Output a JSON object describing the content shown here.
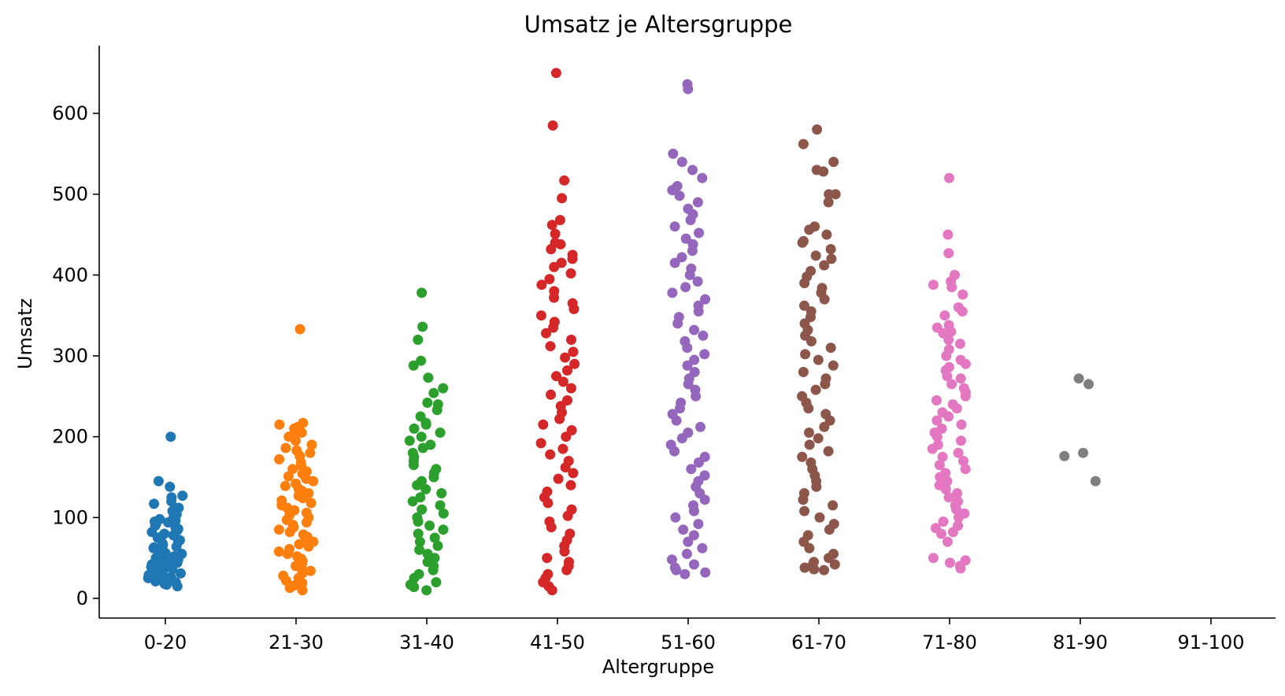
{
  "chart_data": {
    "type": "scatter",
    "subtype": "strip",
    "title": "Umsatz je Altersgruppe",
    "xlabel": "Altergruppe",
    "ylabel": "Umsatz",
    "ylim": [
      -25,
      680
    ],
    "yticks": [
      0,
      100,
      200,
      300,
      400,
      500,
      600
    ],
    "grid": false,
    "legend": "none",
    "categories": [
      "0-20",
      "21-30",
      "31-40",
      "41-50",
      "51-60",
      "61-70",
      "71-80",
      "81-90",
      "91-100"
    ],
    "series": [
      {
        "category": "0-20",
        "color": "#1f77b4",
        "values": [
          200,
          145,
          138,
          127,
          125,
          120,
          117,
          112,
          108,
          104,
          100,
          98,
          96,
          95,
          94,
          92,
          90,
          88,
          86,
          84,
          82,
          80,
          78,
          76,
          75,
          74,
          72,
          70,
          68,
          66,
          64,
          63,
          62,
          60,
          58,
          56,
          55,
          54,
          52,
          50,
          49,
          48,
          47,
          46,
          45,
          44,
          43,
          42,
          40,
          39,
          38,
          37,
          36,
          35,
          34,
          33,
          32,
          31,
          30,
          29,
          28,
          27,
          26,
          25,
          24,
          23,
          22,
          21,
          20,
          18,
          17,
          15
        ]
      },
      {
        "category": "21-30",
        "color": "#ff7f0e",
        "values": [
          333,
          217,
          215,
          212,
          210,
          207,
          205,
          200,
          195,
          190,
          186,
          183,
          180,
          176,
          172,
          168,
          164,
          160,
          157,
          154,
          151,
          148,
          145,
          142,
          139,
          136,
          133,
          130,
          127,
          124,
          121,
          118,
          115,
          112,
          109,
          106,
          103,
          100,
          97,
          94,
          91,
          88,
          85,
          82,
          79,
          76,
          73,
          70,
          67,
          64,
          61,
          58,
          55,
          52,
          49,
          46,
          43,
          40,
          37,
          34,
          31,
          28,
          25,
          22,
          19,
          16,
          13,
          10
        ]
      },
      {
        "category": "31-40",
        "color": "#2ca02c",
        "values": [
          378,
          336,
          320,
          294,
          288,
          273,
          260,
          254,
          242,
          240,
          233,
          225,
          217,
          215,
          210,
          205,
          200,
          195,
          190,
          186,
          180,
          175,
          170,
          165,
          160,
          155,
          150,
          145,
          140,
          135,
          130,
          125,
          120,
          115,
          110,
          105,
          100,
          95,
          90,
          85,
          80,
          75,
          70,
          65,
          60,
          55,
          50,
          45,
          40,
          35,
          30,
          25,
          20,
          17,
          14,
          10
        ]
      },
      {
        "category": "41-50",
        "color": "#d62728",
        "values": [
          650,
          585,
          517,
          495,
          468,
          462,
          451,
          440,
          438,
          432,
          425,
          420,
          415,
          410,
          402,
          395,
          388,
          380,
          372,
          365,
          358,
          350,
          342,
          335,
          328,
          320,
          312,
          305,
          298,
          290,
          282,
          275,
          268,
          260,
          252,
          245,
          238,
          230,
          222,
          215,
          208,
          200,
          192,
          185,
          178,
          170,
          162,
          155,
          148,
          140,
          132,
          125,
          118,
          110,
          102,
          95,
          88,
          80,
          72,
          65,
          58,
          50,
          45,
          40,
          35,
          30,
          25,
          20,
          15,
          10
        ]
      },
      {
        "category": "51-60",
        "color": "#9467bd",
        "values": [
          636,
          630,
          550,
          540,
          530,
          520,
          510,
          505,
          498,
          490,
          482,
          475,
          468,
          460,
          452,
          445,
          438,
          430,
          422,
          415,
          408,
          400,
          392,
          385,
          378,
          370,
          362,
          355,
          348,
          340,
          332,
          325,
          318,
          310,
          302,
          295,
          288,
          280,
          272,
          265,
          258,
          250,
          242,
          235,
          228,
          220,
          212,
          205,
          198,
          190,
          182,
          175,
          168,
          160,
          152,
          145,
          138,
          130,
          122,
          115,
          108,
          100,
          92,
          85,
          78,
          70,
          62,
          55,
          48,
          42,
          38,
          35,
          32,
          30
        ]
      },
      {
        "category": "61-70",
        "color": "#8c564b",
        "values": [
          580,
          562,
          540,
          530,
          528,
          500,
          500,
          490,
          460,
          456,
          450,
          442,
          440,
          432,
          424,
          420,
          412,
          405,
          398,
          390,
          384,
          378,
          370,
          362,
          355,
          348,
          340,
          332,
          325,
          318,
          310,
          302,
          295,
          288,
          280,
          272,
          265,
          258,
          250,
          242,
          235,
          228,
          220,
          212,
          205,
          198,
          190,
          182,
          175,
          168,
          160,
          152,
          145,
          138,
          130,
          122,
          115,
          108,
          100,
          92,
          85,
          78,
          70,
          62,
          55,
          50,
          45,
          42,
          40,
          38,
          36,
          35
        ]
      },
      {
        "category": "71-80",
        "color": "#e377c2",
        "values": [
          520,
          450,
          427,
          400,
          392,
          388,
          385,
          376,
          360,
          355,
          350,
          338,
          335,
          330,
          328,
          320,
          315,
          308,
          300,
          295,
          290,
          286,
          282,
          275,
          272,
          265,
          260,
          255,
          250,
          245,
          240,
          235,
          230,
          225,
          220,
          215,
          210,
          205,
          200,
          195,
          190,
          185,
          180,
          175,
          170,
          165,
          160,
          155,
          150,
          145,
          140,
          135,
          130,
          125,
          120,
          115,
          110,
          105,
          100,
          95,
          90,
          87,
          82,
          80,
          70,
          50,
          47,
          44,
          40,
          37
        ]
      },
      {
        "category": "81-90",
        "color": "#7f7f7f",
        "values": [
          272,
          265,
          180,
          176,
          145
        ]
      },
      {
        "category": "91-100",
        "color": "#bcbd22",
        "values": []
      }
    ]
  }
}
